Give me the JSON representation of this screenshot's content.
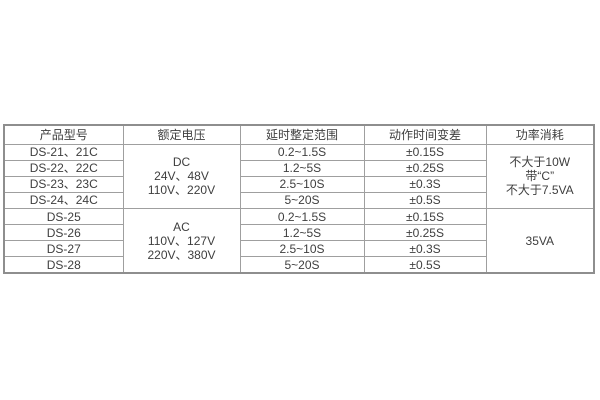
{
  "table": {
    "headers": [
      "产品型号",
      "额定电压",
      "延时整定范围",
      "动作时间变差",
      "功率消耗"
    ],
    "groups": [
      {
        "voltage_lines": [
          "DC",
          "24V、48V",
          "110V、220V"
        ],
        "power_lines": [
          "不大于10W",
          "带“C”",
          "不大于7.5VA"
        ],
        "rows": [
          {
            "model": "DS-21、21C",
            "range": "0.2~1.5S",
            "variance": "±0.15S"
          },
          {
            "model": "DS-22、22C",
            "range": "1.2~5S",
            "variance": "±0.25S"
          },
          {
            "model": "DS-23、23C",
            "range": "2.5~10S",
            "variance": "±0.3S"
          },
          {
            "model": "DS-24、24C",
            "range": "5~20S",
            "variance": "±0.5S"
          }
        ]
      },
      {
        "voltage_lines": [
          "AC",
          "110V、127V",
          "220V、380V"
        ],
        "power_lines": [
          "35VA"
        ],
        "rows": [
          {
            "model": "DS-25",
            "range": "0.2~1.5S",
            "variance": "±0.15S"
          },
          {
            "model": "DS-26",
            "range": "1.2~5S",
            "variance": "±0.25S"
          },
          {
            "model": "DS-27",
            "range": "2.5~10S",
            "variance": "±0.3S"
          },
          {
            "model": "DS-28",
            "range": "5~20S",
            "variance": "±0.5S"
          }
        ]
      }
    ],
    "colors": {
      "background": "#ffffff",
      "inner_border": "#9f9f9f",
      "outer_border": "#8e8e8e",
      "text": "#3e3e3e"
    }
  }
}
